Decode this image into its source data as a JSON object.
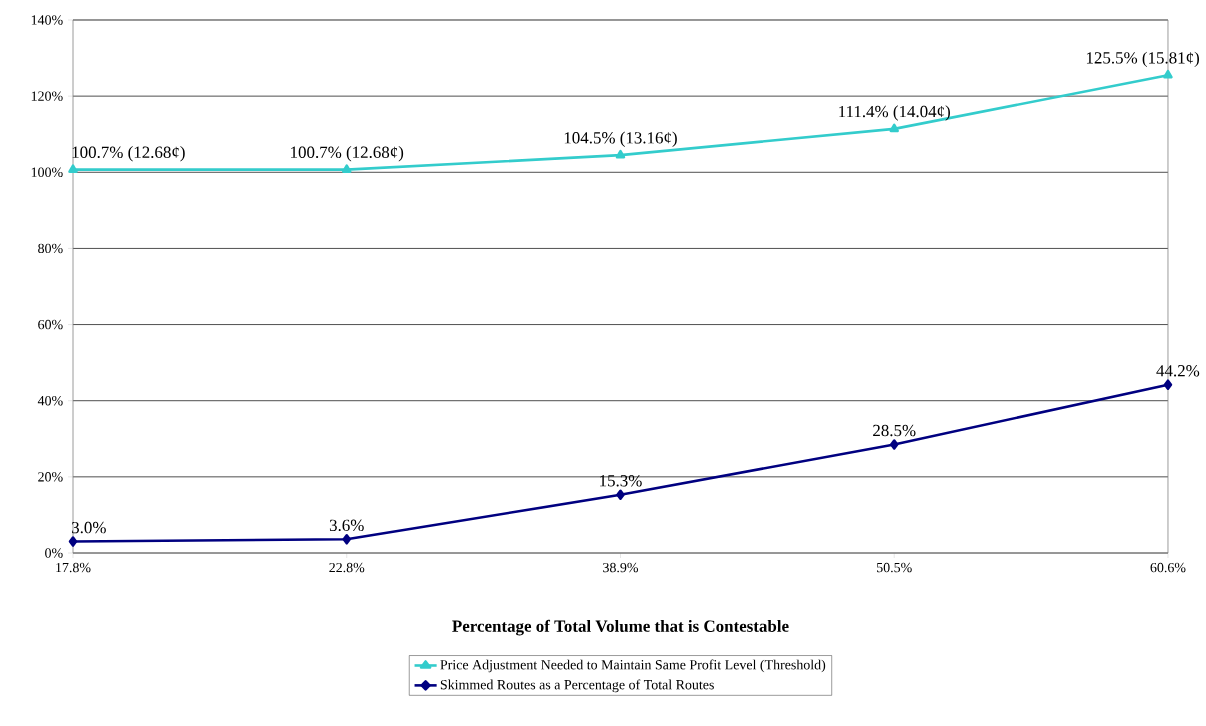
{
  "chart_data": {
    "type": "line",
    "xlabel": "Percentage of Total Volume that is Contestable",
    "categories": [
      "17.8%",
      "22.8%",
      "38.9%",
      "50.5%",
      "60.6%"
    ],
    "series": [
      {
        "name": "Price Adjustment Needed to Maintain Same Profit Level (Threshold)",
        "color": "#33cccc",
        "marker": "triangle",
        "values": [
          100.7,
          100.7,
          104.5,
          111.4,
          125.5
        ],
        "value_labels": [
          "100.7% (12.68¢)",
          "100.7% (12.68¢)",
          "104.5% (13.16¢)",
          "111.4% (14.04¢)",
          "125.5% (15.81¢)"
        ]
      },
      {
        "name": "Skimmed Routes as a Percentage of Total Routes",
        "color": "#000080",
        "marker": "diamond",
        "values": [
          3.0,
          3.6,
          15.3,
          28.5,
          44.2
        ],
        "value_labels": [
          "3.0%",
          "3.6%",
          "15.3%",
          "28.5%",
          "44.2%"
        ]
      }
    ],
    "ylim": [
      0,
      140
    ],
    "yticks": [
      {
        "value": 0,
        "label": "0%"
      },
      {
        "value": 20,
        "label": "20%"
      },
      {
        "value": 40,
        "label": "40%"
      },
      {
        "value": 60,
        "label": "60%"
      },
      {
        "value": 80,
        "label": "80%"
      },
      {
        "value": 100,
        "label": "100%"
      },
      {
        "value": 120,
        "label": "120%"
      },
      {
        "value": 140,
        "label": "140%"
      }
    ],
    "grid": "y",
    "legend": "bottom",
    "line_style": "solid"
  }
}
